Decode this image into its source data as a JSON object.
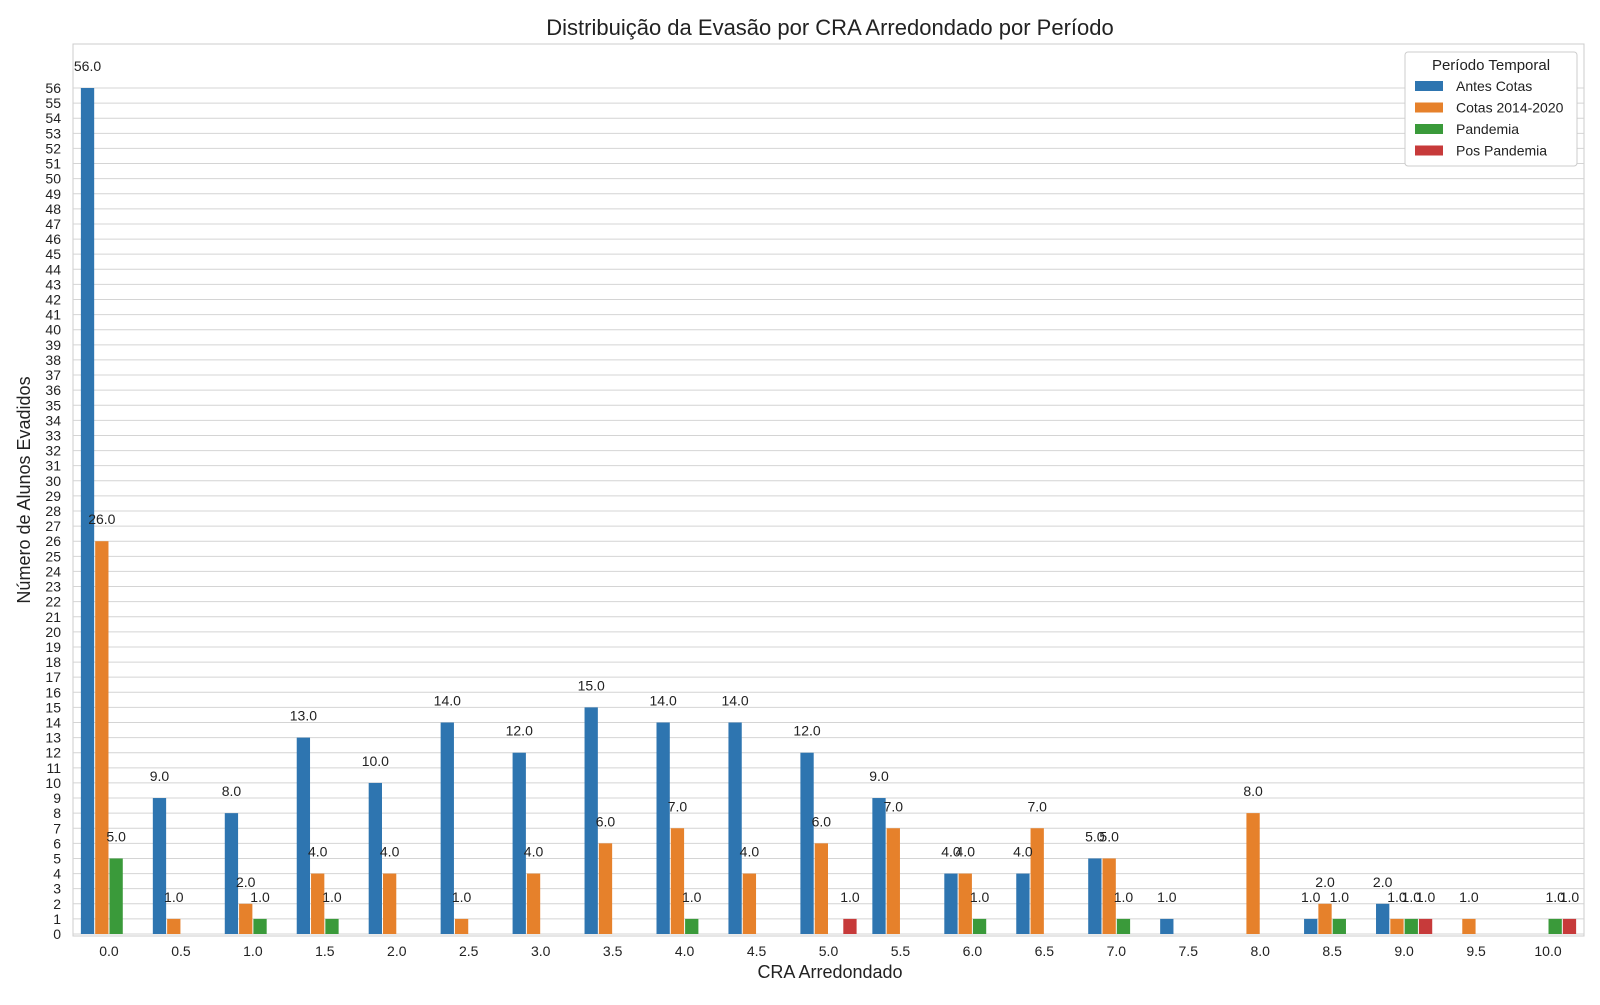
{
  "chart_data": {
    "type": "bar",
    "title": "Distribuição da Evasão por CRA Arredondado por Período",
    "xlabel": "CRA Arredondado",
    "ylabel": "Número de Alunos Evadidos",
    "ylim": [
      0,
      56
    ],
    "yticks": [
      0,
      1,
      2,
      3,
      4,
      5,
      6,
      7,
      8,
      9,
      10,
      11,
      12,
      13,
      14,
      15,
      16,
      17,
      18,
      19,
      20,
      21,
      22,
      23,
      24,
      25,
      26,
      27,
      28,
      29,
      30,
      31,
      32,
      33,
      34,
      35,
      36,
      37,
      38,
      39,
      40,
      41,
      42,
      43,
      44,
      45,
      46,
      47,
      48,
      49,
      50,
      51,
      52,
      53,
      54,
      55,
      56
    ],
    "grid": true,
    "legend": {
      "title": "Período Temporal",
      "placement": "top-right"
    },
    "categories": [
      "0.0",
      "0.5",
      "1.0",
      "1.5",
      "2.0",
      "2.5",
      "3.0",
      "3.5",
      "4.0",
      "4.5",
      "5.0",
      "5.5",
      "6.0",
      "6.5",
      "7.0",
      "7.5",
      "8.0",
      "8.5",
      "9.0",
      "9.5",
      "10.0"
    ],
    "series": [
      {
        "name": "Antes Cotas",
        "color": "#2e75b0",
        "values": [
          56,
          9,
          8,
          13,
          10,
          14,
          12,
          15,
          14,
          14,
          12,
          9,
          4,
          4,
          5,
          1,
          null,
          1,
          2,
          null,
          null
        ]
      },
      {
        "name": "Cotas 2014-2020",
        "color": "#e6812b",
        "values": [
          26,
          1,
          2,
          4,
          4,
          1,
          4,
          6,
          7,
          4,
          6,
          7,
          4,
          7,
          5,
          null,
          8,
          2,
          1,
          1,
          null
        ]
      },
      {
        "name": "Pandemia",
        "color": "#3a9a3a",
        "values": [
          5,
          null,
          1,
          1,
          null,
          null,
          null,
          null,
          1,
          null,
          null,
          null,
          1,
          null,
          1,
          null,
          null,
          1,
          1,
          null,
          1
        ]
      },
      {
        "name": "Pos Pandemia",
        "color": "#c73a3a",
        "values": [
          null,
          null,
          null,
          null,
          null,
          null,
          null,
          null,
          null,
          null,
          1,
          null,
          null,
          null,
          null,
          null,
          null,
          null,
          1,
          null,
          1
        ]
      }
    ]
  }
}
